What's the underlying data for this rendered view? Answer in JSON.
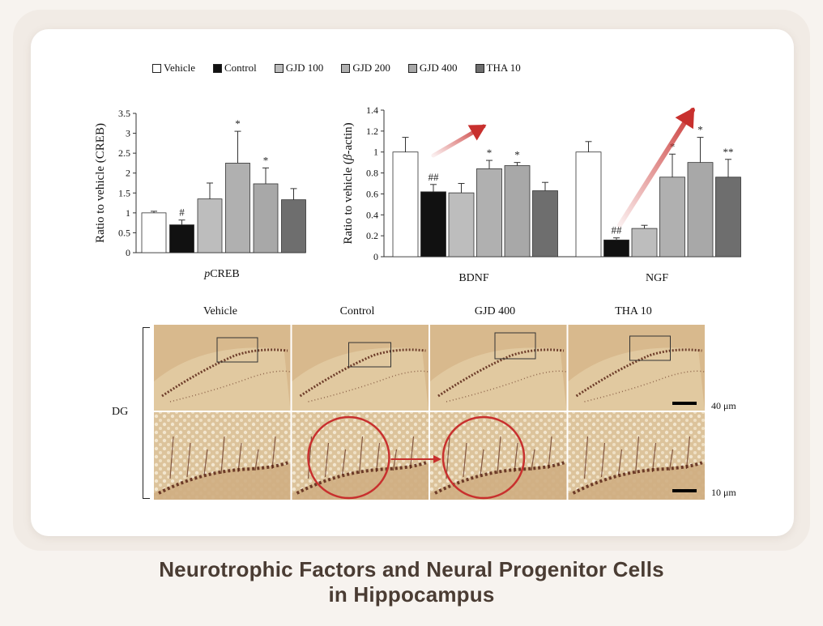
{
  "legend": [
    {
      "label": "Vehicle",
      "color": "#ffffff"
    },
    {
      "label": "Control",
      "color": "#111111"
    },
    {
      "label": "GJD 100",
      "color": "#bdbdbd"
    },
    {
      "label": "GJD 200",
      "color": "#b0b0b0"
    },
    {
      "label": "GJD 400",
      "color": "#a8a8a8"
    },
    {
      "label": "THA 10",
      "color": "#6e6e6e"
    }
  ],
  "chart_data": [
    {
      "type": "bar",
      "ylabel": "Ratio to vehicle (CREB)",
      "ylim": [
        0,
        3.5
      ],
      "yticks": [
        "0",
        "0.5",
        "1",
        "1.5",
        "2",
        "2.5",
        "3",
        "3.5"
      ],
      "groups": [
        {
          "label": "pCREB",
          "values": [
            1.0,
            0.7,
            1.35,
            2.25,
            1.73,
            1.33
          ],
          "errors": [
            0.04,
            0.12,
            0.4,
            0.8,
            0.4,
            0.28
          ],
          "marks": [
            "",
            "#",
            "",
            "*",
            "*",
            ""
          ]
        }
      ]
    },
    {
      "type": "bar",
      "ylabel": "Ratio to vehicle (β-actin)",
      "ylim": [
        0,
        1.4
      ],
      "yticks": [
        "0",
        "0.2",
        "0.4",
        "0.6",
        "0.8",
        "1",
        "1.2",
        "1.4"
      ],
      "groups": [
        {
          "label": "BDNF",
          "values": [
            1.0,
            0.62,
            0.61,
            0.84,
            0.87,
            0.63
          ],
          "errors": [
            0.14,
            0.07,
            0.09,
            0.08,
            0.03,
            0.08
          ],
          "marks": [
            "",
            "##",
            "",
            "*",
            "*",
            ""
          ]
        },
        {
          "label": "NGF",
          "values": [
            1.0,
            0.16,
            0.27,
            0.76,
            0.9,
            0.76
          ],
          "errors": [
            0.1,
            0.02,
            0.03,
            0.22,
            0.24,
            0.17
          ],
          "marks": [
            "",
            "##",
            "",
            "*",
            "*",
            "**"
          ]
        }
      ]
    }
  ],
  "micrograph": {
    "column_labels": [
      "Vehicle",
      "Control",
      "GJD 400",
      "THA 10"
    ],
    "row_label": "DG",
    "scale_labels": [
      "40 μm",
      "10 μm"
    ]
  },
  "footer": {
    "line1": "Neurotrophic Factors and Neural Progenitor Cells",
    "line2": "in Hippocampus"
  },
  "colors": {
    "arrow": "#c8302e",
    "tissue_bg": "#d8b98d",
    "stain": "#5a2616"
  }
}
